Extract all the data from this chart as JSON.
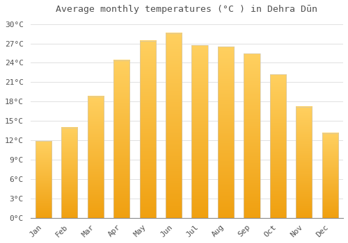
{
  "title": "Average monthly temperatures (°C ) in Dehra Dūn",
  "months": [
    "Jan",
    "Feb",
    "Mar",
    "Apr",
    "May",
    "Jun",
    "Jul",
    "Aug",
    "Sep",
    "Oct",
    "Nov",
    "Dec"
  ],
  "temperatures": [
    11.9,
    14.0,
    18.8,
    24.4,
    27.4,
    28.6,
    26.7,
    26.5,
    25.4,
    22.2,
    17.2,
    13.1
  ],
  "bar_color_top": "#FFD060",
  "bar_color_bottom": "#F0A010",
  "bar_edge_color": "#C8C8C8",
  "background_color": "#FFFFFF",
  "grid_color": "#E0E0E0",
  "text_color": "#505050",
  "ylim": [
    0,
    31
  ],
  "yticks": [
    0,
    3,
    6,
    9,
    12,
    15,
    18,
    21,
    24,
    27,
    30
  ],
  "title_fontsize": 9.5,
  "tick_fontsize": 8,
  "bar_width": 0.62
}
